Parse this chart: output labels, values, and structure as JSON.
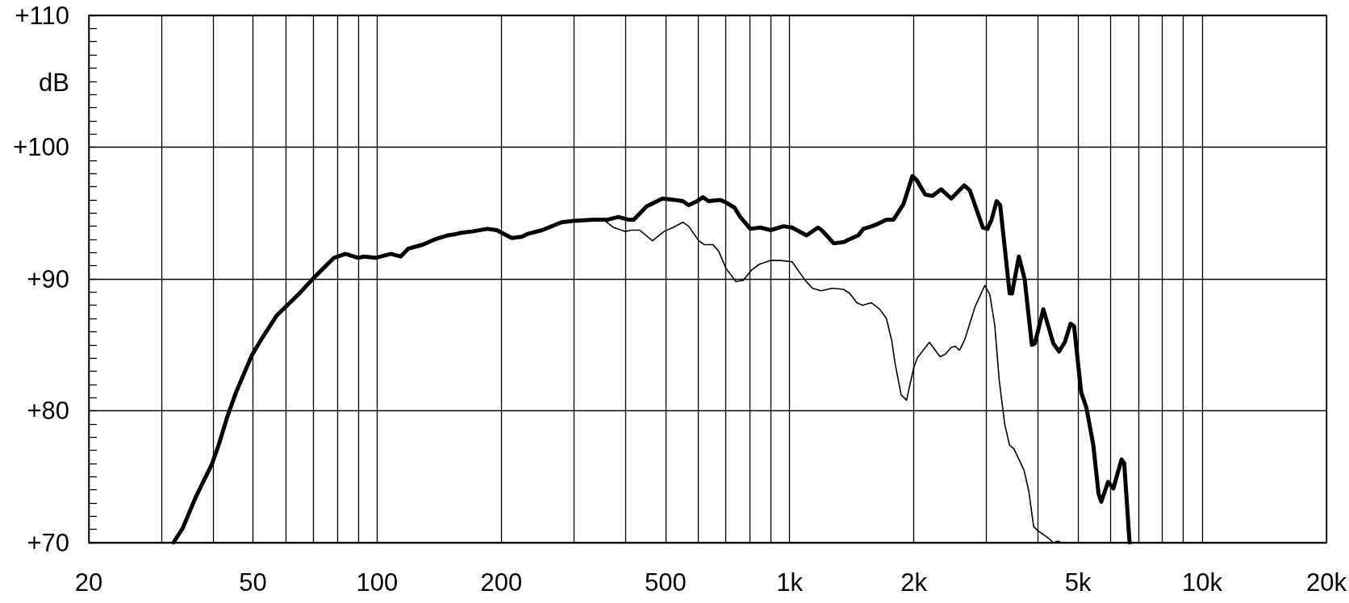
{
  "chart_data": {
    "type": "line",
    "ylabel": "dB",
    "log": "x",
    "grid": true,
    "marker": "none",
    "line_style": "solid",
    "xlim": [
      20,
      20000
    ],
    "xticks": [
      20,
      {
        "value": 30,
        "label": null
      },
      {
        "value": 40,
        "label": null
      },
      50,
      {
        "value": 60,
        "label": null
      },
      {
        "value": 70,
        "label": null
      },
      {
        "value": 80,
        "label": null
      },
      {
        "value": 90,
        "label": null
      },
      100,
      200,
      {
        "value": 300,
        "label": null
      },
      {
        "value": 400,
        "label": null
      },
      500,
      {
        "value": 600,
        "label": null
      },
      {
        "value": 700,
        "label": null
      },
      {
        "value": 800,
        "label": null
      },
      {
        "value": 900,
        "label": null
      },
      {
        "value": 1000,
        "label": "1k"
      },
      {
        "value": 2000,
        "label": "2k"
      },
      {
        "value": 3000,
        "label": null
      },
      {
        "value": 4000,
        "label": null
      },
      {
        "value": 5000,
        "label": "5k"
      },
      {
        "value": 6000,
        "label": null
      },
      {
        "value": 7000,
        "label": null
      },
      {
        "value": 8000,
        "label": null
      },
      {
        "value": 9000,
        "label": null
      },
      {
        "value": 10000,
        "label": "10k"
      },
      {
        "value": 20000,
        "label": "20k"
      }
    ],
    "ylim": [
      70,
      110
    ],
    "yticks": [
      {
        "value": 70,
        "label": "+70"
      },
      {
        "value": 71,
        "label": null
      },
      {
        "value": 72,
        "label": null
      },
      {
        "value": 73,
        "label": null
      },
      {
        "value": 74,
        "label": null
      },
      {
        "value": 75,
        "label": null
      },
      {
        "value": 76,
        "label": null
      },
      {
        "value": 77,
        "label": null
      },
      {
        "value": 78,
        "label": null
      },
      {
        "value": 79,
        "label": null
      },
      {
        "value": 80,
        "label": "+80"
      },
      {
        "value": 81,
        "label": null
      },
      {
        "value": 82,
        "label": null
      },
      {
        "value": 83,
        "label": null
      },
      {
        "value": 84,
        "label": null
      },
      {
        "value": 85,
        "label": null
      },
      {
        "value": 86,
        "label": null
      },
      {
        "value": 87,
        "label": null
      },
      {
        "value": 88,
        "label": null
      },
      {
        "value": 89,
        "label": null
      },
      {
        "value": 90,
        "label": "+90"
      },
      {
        "value": 91,
        "label": null
      },
      {
        "value": 92,
        "label": null
      },
      {
        "value": 93,
        "label": null
      },
      {
        "value": 94,
        "label": null
      },
      {
        "value": 95,
        "label": null
      },
      {
        "value": 96,
        "label": null
      },
      {
        "value": 97,
        "label": null
      },
      {
        "value": 98,
        "label": null
      },
      {
        "value": 99,
        "label": null
      },
      {
        "value": 100,
        "label": "+100"
      },
      {
        "value": 101,
        "label": null
      },
      {
        "value": 102,
        "label": null
      },
      {
        "value": 103,
        "label": null
      },
      {
        "value": 104,
        "label": null
      },
      {
        "value": 105,
        "label": null
      },
      {
        "value": 106,
        "label": null
      },
      {
        "value": 107,
        "label": null
      },
      {
        "value": 108,
        "label": null
      },
      {
        "value": 109,
        "label": null
      },
      {
        "value": 110,
        "label": "+110"
      }
    ],
    "series": [
      {
        "color": "#000000",
        "x": [
          32.1,
          33.8,
          36.4,
          39.7,
          41.3,
          43.4,
          45.5,
          49.7,
          52.6,
          57,
          64.8,
          70.3,
          78.6,
          83.8,
          90,
          92.9,
          99.2,
          108,
          114,
          119,
          129,
          138,
          148,
          155,
          160,
          170,
          185,
          195,
          212,
          224,
          231,
          251,
          280,
          299,
          335,
          363,
          384,
          406,
          419,
          450,
          492,
          525,
          551,
          569,
          597,
          616,
          636,
          679,
          701,
          735,
          759,
          803,
          849,
          899,
          966,
          1014,
          1099,
          1171,
          1196,
          1279,
          1353,
          1393,
          1466,
          1509,
          1583,
          1641,
          1716,
          1786,
          1889,
          1983,
          2032,
          2132,
          2219,
          2329,
          2464,
          2649,
          2735,
          2939,
          3016,
          3086,
          3175,
          3238,
          3414,
          3459,
          3594,
          3711,
          3864,
          3929,
          4120,
          4357,
          4498,
          4645,
          4797,
          4891,
          5089,
          5242,
          5445,
          5607,
          5694,
          5913,
          6089,
          6374,
          6471,
          6666
        ],
        "values": [
          70,
          71.1,
          73.5,
          75.9,
          77.4,
          79.6,
          81.4,
          84.2,
          85.5,
          87.2,
          88.9,
          90.1,
          91.6,
          91.9,
          91.6,
          91.7,
          91.6,
          91.9,
          91.7,
          92.3,
          92.6,
          93,
          93.3,
          93.4,
          93.5,
          93.6,
          93.8,
          93.7,
          93.1,
          93.2,
          93.4,
          93.7,
          94.3,
          94.4,
          94.5,
          94.5,
          94.7,
          94.5,
          94.5,
          95.5,
          96.1,
          96,
          95.9,
          95.6,
          95.9,
          96.2,
          95.9,
          96,
          95.8,
          95.4,
          94.7,
          93.8,
          93.9,
          93.7,
          94,
          93.9,
          93.3,
          93.9,
          93.7,
          92.7,
          92.8,
          93,
          93.3,
          93.8,
          94,
          94.2,
          94.5,
          94.5,
          95.7,
          97.8,
          97.5,
          96.4,
          96.3,
          96.8,
          96.1,
          97.1,
          96.7,
          93.9,
          93.8,
          94.5,
          95.9,
          95.6,
          88.9,
          88.9,
          91.7,
          90,
          85,
          85.1,
          87.7,
          85.1,
          84.5,
          85.2,
          86.6,
          86.4,
          81.4,
          80.2,
          77.4,
          73.7,
          73.1,
          74.6,
          74.1,
          76.3,
          76,
          70
        ]
      },
      {
        "color": "#000000",
        "x": [
          340,
          357,
          374,
          400,
          412,
          433,
          465,
          496,
          521,
          551,
          569,
          602,
          621,
          652,
          673,
          701,
          741,
          772,
          810,
          843,
          899,
          951,
          1014,
          1090,
          1135,
          1191,
          1270,
          1353,
          1398,
          1455,
          1502,
          1576,
          1654,
          1716,
          1768,
          1801,
          1863,
          1920,
          2000,
          2039,
          2181,
          2265,
          2316,
          2386,
          2463,
          2516,
          2581,
          2658,
          2815,
          2971,
          3057,
          3141,
          3221,
          3320,
          3411,
          3498,
          3698,
          3799,
          3903,
          4000,
          4252,
          4350,
          4478,
          4550
        ],
        "values": [
          94.5,
          94.4,
          93.9,
          93.6,
          93.7,
          93.7,
          92.9,
          93.6,
          93.9,
          94.3,
          94,
          92.9,
          92.6,
          92.6,
          92.1,
          90.8,
          89.8,
          89.9,
          90.7,
          91.1,
          91.4,
          91.4,
          91.3,
          89.9,
          89.3,
          89.1,
          89.3,
          89.2,
          88.9,
          88.2,
          88,
          88.2,
          87.7,
          87,
          85.3,
          83.6,
          81.2,
          80.8,
          83.3,
          84,
          85.2,
          84.5,
          84.1,
          84.3,
          84.8,
          84.9,
          84.6,
          85.4,
          87.9,
          89.5,
          88.8,
          86.5,
          82.3,
          79,
          77.4,
          77.1,
          75.5,
          73.9,
          71.2,
          70.9,
          70.3,
          70,
          70.1,
          70
        ]
      }
    ]
  }
}
